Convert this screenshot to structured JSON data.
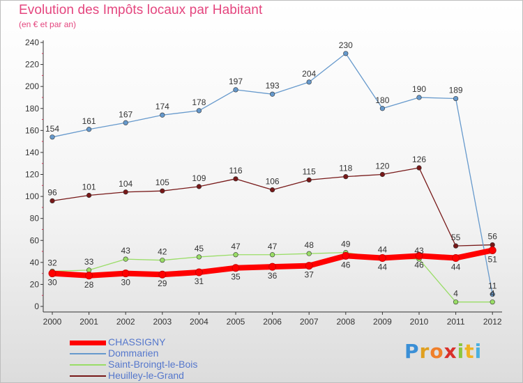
{
  "title": "Evolution des Impôts locaux par Habitant",
  "subtitle": "(en € et par an)",
  "chart_data": {
    "type": "line",
    "title": "Evolution des Impôts locaux par Habitant",
    "subtitle": "(en € et par an)",
    "x": [
      "2000",
      "2001",
      "2002",
      "2003",
      "2004",
      "2005",
      "2006",
      "2007",
      "2008",
      "2009",
      "2010",
      "2011",
      "2012"
    ],
    "yticks": [
      0,
      20,
      40,
      60,
      80,
      100,
      120,
      140,
      160,
      180,
      200,
      220,
      240
    ],
    "ylim": [
      0,
      240
    ],
    "grid": false,
    "legend_position": "bottom-left",
    "series": [
      {
        "name": "CHASSIGNY",
        "color": "#ff0000",
        "values": [
          30,
          28,
          30,
          29,
          31,
          35,
          36,
          37,
          46,
          44,
          46,
          44,
          51
        ]
      },
      {
        "name": "Dommarien",
        "color": "#6699cc",
        "values": [
          154,
          161,
          167,
          174,
          178,
          197,
          193,
          204,
          230,
          180,
          190,
          189,
          11
        ]
      },
      {
        "name": "Saint-Broingt-le-Bois",
        "color": "#99dd66",
        "values": [
          32,
          33,
          43,
          42,
          45,
          47,
          47,
          48,
          49,
          44,
          43,
          4,
          4
        ]
      },
      {
        "name": "Heuilley-le-Grand",
        "color": "#771818",
        "values": [
          96,
          101,
          104,
          105,
          109,
          116,
          106,
          115,
          118,
          120,
          126,
          55,
          56
        ]
      }
    ]
  },
  "logo": {
    "letters": [
      "P",
      "r",
      "o",
      "x",
      "i",
      "t",
      "i"
    ]
  }
}
